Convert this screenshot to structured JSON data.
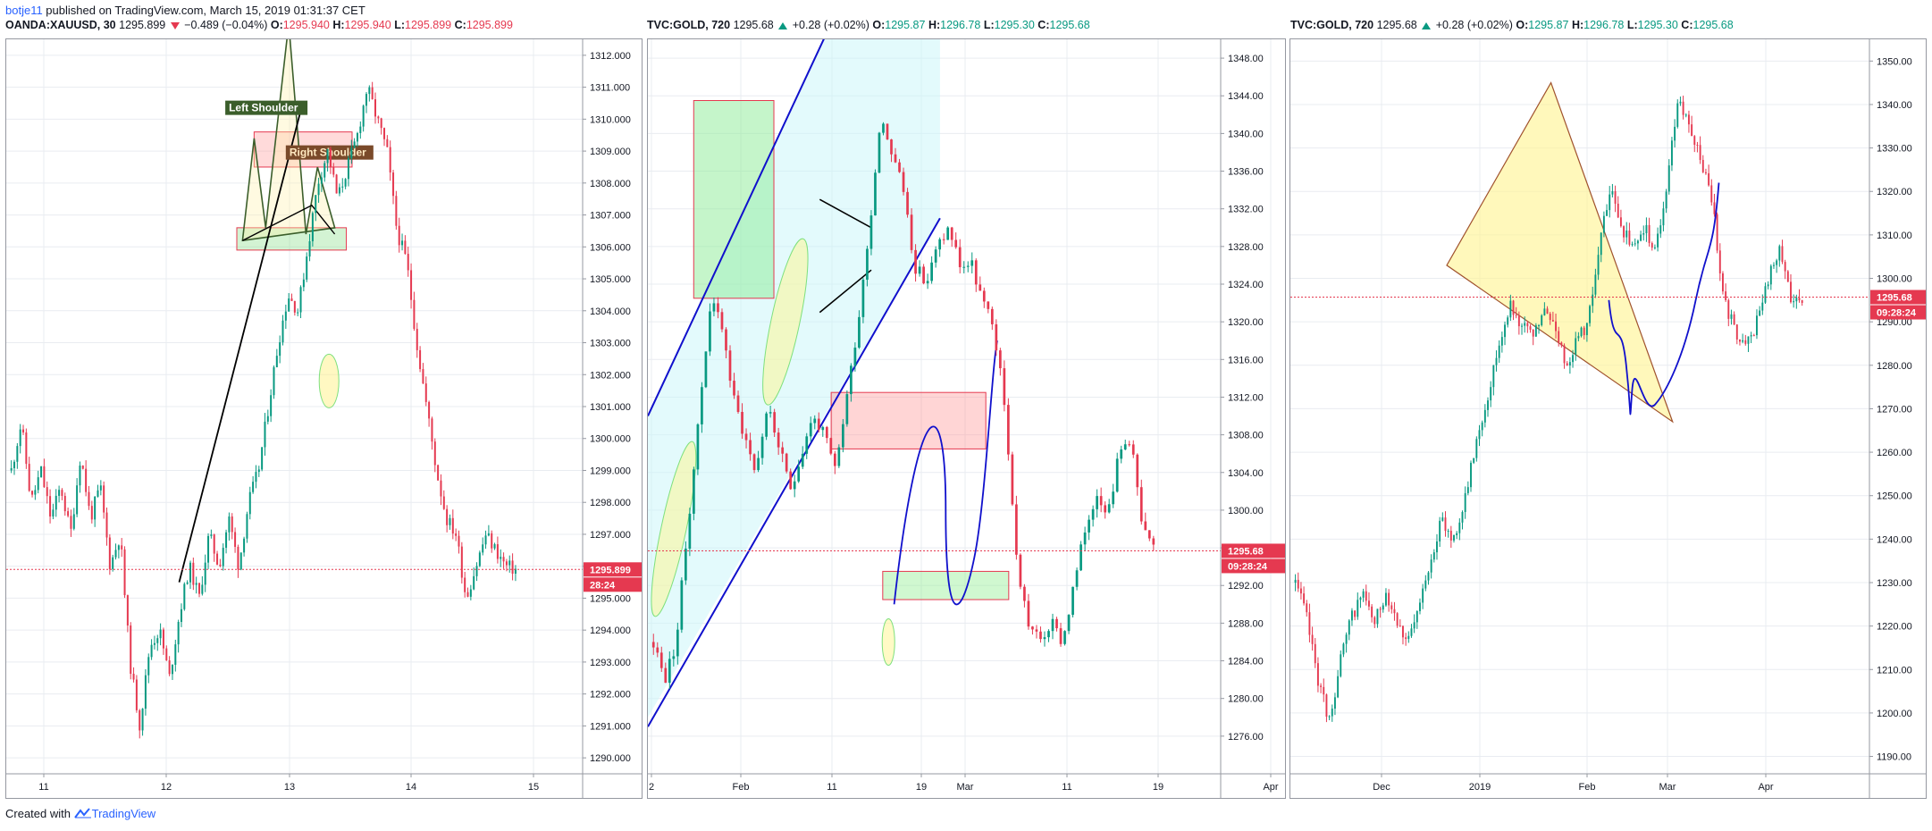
{
  "header": {
    "author": "botje11",
    "published_text": " published on TradingView.com, March 15, 2019 01:31:37 CET"
  },
  "footer": {
    "created_with": "Created with",
    "brand": "TradingView"
  },
  "colors": {
    "up": "#089981",
    "down": "#e53950",
    "last_price_line": "#e53950",
    "grid": "#e9ecf1"
  },
  "chart_data": [
    {
      "type": "candlestick",
      "symbol": "OANDA:XAUUSD, 30",
      "last": "1295.899",
      "change": "−0.489 (−0.04%)",
      "change_direction": "down",
      "ohlc": {
        "o": "1295.940",
        "h": "1295.940",
        "l": "1295.899",
        "c": "1295.899"
      },
      "ylim": [
        1289.5,
        1312.5
      ],
      "yticks": [
        "1290.000",
        "1291.000",
        "1292.000",
        "1293.000",
        "1294.000",
        "1295.000",
        "1296.000",
        "1297.000",
        "1298.000",
        "1299.000",
        "1300.000",
        "1301.000",
        "1302.000",
        "1303.000",
        "1304.000",
        "1305.000",
        "1306.000",
        "1307.000",
        "1308.000",
        "1309.000",
        "1310.000",
        "1311.000",
        "1312.000"
      ],
      "xticks": [
        "11",
        "12",
        "13",
        "14",
        "15"
      ],
      "price_badge": "1295.899",
      "countdown": "28:24",
      "annotations": [
        "Left Shoulder",
        "Right Shoulder"
      ],
      "path": [
        1299,
        1300.5,
        1298,
        1299,
        1297.5,
        1298.5,
        1297,
        1299.5,
        1297.5,
        1298.5,
        1296,
        1297,
        1293,
        1291,
        1293.5,
        1294,
        1292.5,
        1294.5,
        1296,
        1295,
        1297,
        1296,
        1297.5,
        1296,
        1298,
        1299,
        1301,
        1303,
        1304.5,
        1304,
        1306,
        1308,
        1309,
        1307.5,
        1308.5,
        1309.5,
        1311,
        1310,
        1309,
        1306.5,
        1305.5,
        1303,
        1301,
        1299,
        1297.5,
        1297,
        1295,
        1296,
        1297,
        1296.5,
        1296,
        1295.9
      ]
    },
    {
      "type": "candlestick",
      "symbol": "TVC:GOLD, 720",
      "last": "1295.68",
      "change": "+0.28 (+0.02%)",
      "change_direction": "up",
      "ohlc": {
        "o": "1295.87",
        "h": "1296.78",
        "l": "1295.30",
        "c": "1295.68"
      },
      "ylim": [
        1272,
        1350
      ],
      "yticks": [
        "1276.00",
        "1280.00",
        "1284.00",
        "1288.00",
        "1292.00",
        "1296.00",
        "1300.00",
        "1304.00",
        "1308.00",
        "1312.00",
        "1316.00",
        "1320.00",
        "1324.00",
        "1328.00",
        "1332.00",
        "1336.00",
        "1340.00",
        "1344.00",
        "1348.00"
      ],
      "xticks": [
        "2",
        "Feb",
        "11",
        "19",
        "Mar",
        "11",
        "19",
        "Apr"
      ],
      "price_badge": "1295.68",
      "countdown": "09:28:24",
      "path": [
        1286,
        1282,
        1286,
        1298,
        1310,
        1322,
        1320,
        1312,
        1308,
        1304,
        1311,
        1307,
        1302,
        1306,
        1310,
        1308,
        1304,
        1312,
        1320,
        1330,
        1342,
        1338,
        1334,
        1326,
        1324,
        1328,
        1330,
        1326,
        1326,
        1322,
        1319,
        1310,
        1294,
        1288,
        1286,
        1288,
        1286,
        1292,
        1298,
        1302,
        1300,
        1306,
        1308,
        1298,
        1295.68
      ]
    },
    {
      "type": "candlestick",
      "symbol": "TVC:GOLD, 720",
      "last": "1295.68",
      "change": "+0.28 (+0.02%)",
      "change_direction": "up",
      "ohlc": {
        "o": "1295.87",
        "h": "1296.78",
        "l": "1295.30",
        "c": "1295.68"
      },
      "ylim": [
        1186,
        1355
      ],
      "yticks": [
        "1190.00",
        "1200.00",
        "1210.00",
        "1220.00",
        "1230.00",
        "1240.00",
        "1250.00",
        "1260.00",
        "1270.00",
        "1280.00",
        "1290.00",
        "1300.00",
        "1310.00",
        "1320.00",
        "1330.00",
        "1340.00",
        "1350.00"
      ],
      "xticks": [
        "Dec",
        "2019",
        "Feb",
        "Mar",
        "Apr"
      ],
      "price_badge": "1295.68",
      "countdown": "09:28:24",
      "path": [
        1230,
        1222,
        1208,
        1198,
        1212,
        1222,
        1228,
        1220,
        1228,
        1222,
        1216,
        1224,
        1236,
        1244,
        1240,
        1248,
        1262,
        1272,
        1284,
        1294,
        1290,
        1286,
        1292,
        1290,
        1280,
        1286,
        1290,
        1308,
        1320,
        1312,
        1306,
        1312,
        1306,
        1322,
        1342,
        1334,
        1328,
        1318,
        1296,
        1288,
        1284,
        1290,
        1300,
        1306,
        1296,
        1295.68
      ]
    }
  ]
}
